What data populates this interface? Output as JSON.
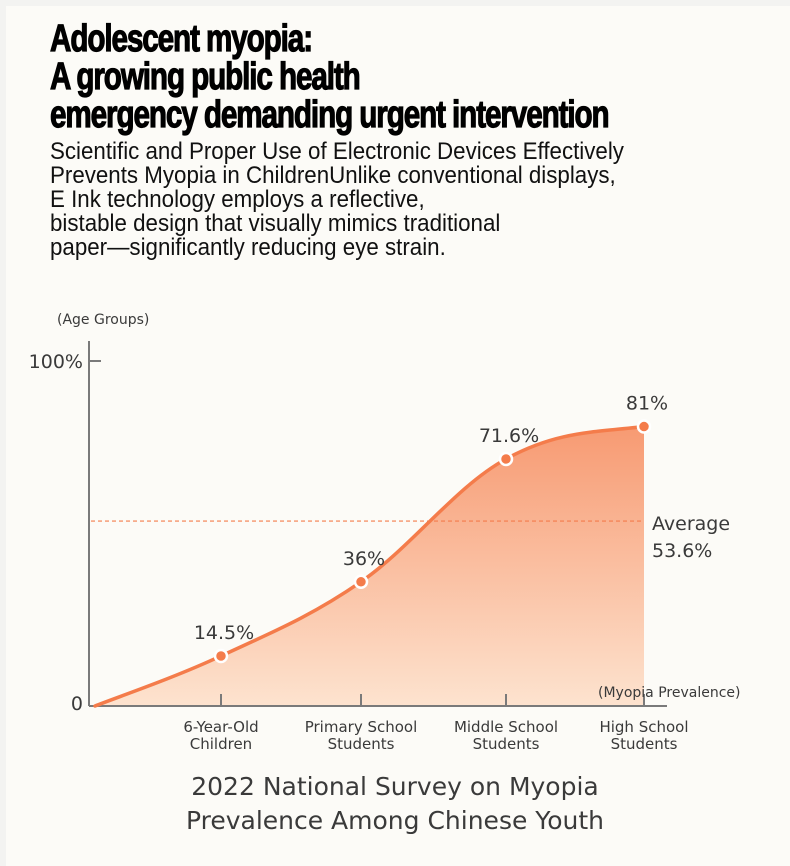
{
  "headline": {
    "lines": [
      "Adolescent myopia:",
      "A growing public health",
      "emergency demanding urgent intervention"
    ]
  },
  "intro": {
    "lines": [
      "Scientific and Proper Use of Electronic Devices Effectively",
      "Prevents Myopia in ChildrenUnlike conventional displays,",
      "E Ink technology employs a reflective,",
      "bistable design that visually mimics traditional",
      "paper—significantly reducing eye strain."
    ]
  },
  "colors": {
    "accent": "#f47c4b",
    "fill_top": "#f79a72",
    "fill_bottom": "#fde3cf",
    "axis": "#7a7a7a",
    "text": "#3a3a3a"
  },
  "chart_data": {
    "type": "area",
    "title": "2022 National Survey on Myopia Prevalence Among Chinese Youth",
    "title_lines": [
      "2022 National Survey on Myopia",
      "Prevalence Among Chinese Youth"
    ],
    "xlabel": "(Myopia Prevalence)",
    "ylabel": "(Age Groups)",
    "y_ticks": [
      "0",
      "100%"
    ],
    "ylim": [
      0,
      100
    ],
    "categories": [
      [
        "6-Year-Old",
        "Children"
      ],
      [
        "Primary School",
        "Students"
      ],
      [
        "Middle School",
        "Students"
      ],
      [
        "High School",
        "Students"
      ]
    ],
    "series": [
      {
        "name": "Myopia Prevalence",
        "values": [
          14.5,
          36,
          71.6,
          81
        ],
        "labels": [
          "14.5%",
          "36%",
          "71.6%",
          "81%"
        ]
      }
    ],
    "origin_value": 0,
    "reference_line": {
      "value": 53.6,
      "label_lines": [
        "Average",
        "53.6%"
      ]
    },
    "grid": false,
    "legend": "none"
  }
}
